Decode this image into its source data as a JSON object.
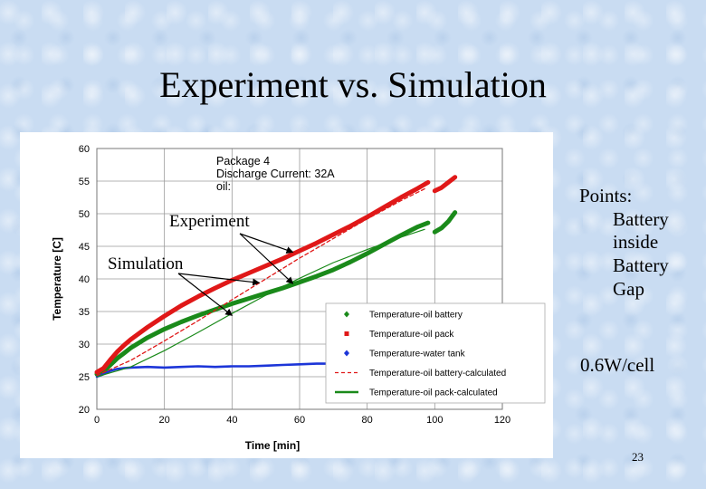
{
  "slide": {
    "title": "Experiment vs. Simulation",
    "points_heading": "Points:",
    "points_items": [
      "Battery",
      "inside",
      "Battery",
      "Gap"
    ],
    "power_note": "0.6W/cell",
    "slide_number": "23"
  },
  "chart_data": {
    "type": "line",
    "title": "",
    "xlabel": "Time [min]",
    "ylabel": "Temperature [C]",
    "xlim": [
      0,
      120
    ],
    "ylim": [
      20,
      60
    ],
    "xticks": [
      0,
      20,
      40,
      60,
      80,
      100,
      120
    ],
    "yticks": [
      20,
      25,
      30,
      35,
      40,
      45,
      50,
      55,
      60
    ],
    "grid": true,
    "legend_position": "bottom-right",
    "annotation_lines": [
      "Package 4",
      "Discharge Current: 32A",
      "oil:"
    ],
    "callouts": [
      "Experiment",
      "Simulation"
    ],
    "series": [
      {
        "name": "Temperature-oil battery",
        "style": "diamond-markers",
        "color": "#1a8a1a",
        "segments": [
          [
            [
              0,
              25.4
            ],
            [
              2,
              25.8
            ],
            [
              4,
              26.8
            ],
            [
              6,
              27.8
            ],
            [
              8,
              28.6
            ],
            [
              10,
              29.4
            ],
            [
              15,
              31.0
            ],
            [
              20,
              32.3
            ],
            [
              25,
              33.4
            ],
            [
              30,
              34.4
            ],
            [
              35,
              35.3
            ],
            [
              40,
              36.2
            ],
            [
              45,
              37.0
            ],
            [
              50,
              37.8
            ],
            [
              55,
              38.6
            ],
            [
              60,
              39.5
            ],
            [
              65,
              40.4
            ],
            [
              70,
              41.4
            ],
            [
              75,
              42.6
            ],
            [
              80,
              43.9
            ],
            [
              85,
              45.3
            ],
            [
              90,
              46.7
            ],
            [
              95,
              48.0
            ],
            [
              98,
              48.6
            ]
          ],
          [
            [
              100,
              47.2
            ],
            [
              102,
              47.8
            ],
            [
              104,
              48.8
            ],
            [
              106,
              50.2
            ]
          ]
        ]
      },
      {
        "name": "Temperature-oil pack",
        "style": "square-markers",
        "color": "#e01818",
        "segments": [
          [
            [
              0,
              25.7
            ],
            [
              2,
              26.3
            ],
            [
              4,
              27.6
            ],
            [
              6,
              28.8
            ],
            [
              8,
              29.8
            ],
            [
              10,
              30.7
            ],
            [
              15,
              32.6
            ],
            [
              20,
              34.3
            ],
            [
              25,
              35.9
            ],
            [
              30,
              37.3
            ],
            [
              35,
              38.6
            ],
            [
              40,
              39.8
            ],
            [
              45,
              40.9
            ],
            [
              50,
              42.0
            ],
            [
              55,
              43.1
            ],
            [
              60,
              44.3
            ],
            [
              65,
              45.5
            ],
            [
              70,
              46.8
            ],
            [
              75,
              48.1
            ],
            [
              80,
              49.5
            ],
            [
              85,
              51.0
            ],
            [
              90,
              52.5
            ],
            [
              95,
              53.9
            ],
            [
              98,
              54.8
            ]
          ],
          [
            [
              100,
              53.5
            ],
            [
              102,
              54.0
            ],
            [
              104,
              54.8
            ],
            [
              106,
              55.6
            ]
          ]
        ]
      },
      {
        "name": "Temperature-water tank",
        "style": "diamond-markers",
        "color": "#1c35d8",
        "segments": [
          [
            [
              0,
              25.0
            ],
            [
              2,
              25.4
            ],
            [
              4,
              25.9
            ],
            [
              6,
              26.2
            ],
            [
              8,
              26.3
            ],
            [
              10,
              26.4
            ],
            [
              15,
              26.5
            ],
            [
              20,
              26.4
            ],
            [
              25,
              26.5
            ],
            [
              30,
              26.6
            ],
            [
              35,
              26.5
            ],
            [
              40,
              26.6
            ],
            [
              45,
              26.6
            ],
            [
              50,
              26.7
            ],
            [
              55,
              26.8
            ],
            [
              60,
              26.9
            ],
            [
              65,
              27.0
            ],
            [
              68,
              27.0
            ]
          ]
        ]
      },
      {
        "name": "Temperature-oil battery-calculated",
        "style": "dashed",
        "color": "#e01818",
        "segments": [
          [
            [
              0,
              25.2
            ],
            [
              10,
              27.5
            ],
            [
              20,
              30.5
            ],
            [
              30,
              33.6
            ],
            [
              40,
              36.8
            ],
            [
              50,
              40.0
            ],
            [
              60,
              43.2
            ],
            [
              70,
              46.2
            ],
            [
              80,
              49.2
            ],
            [
              90,
              52.0
            ],
            [
              97,
              53.8
            ]
          ]
        ]
      },
      {
        "name": "Temperature-oil pack-calculated",
        "style": "solid-thin",
        "color": "#1a8a1a",
        "segments": [
          [
            [
              0,
              25.0
            ],
            [
              10,
              26.5
            ],
            [
              20,
              29.0
            ],
            [
              30,
              31.8
            ],
            [
              40,
              34.7
            ],
            [
              50,
              37.5
            ],
            [
              60,
              40.1
            ],
            [
              70,
              42.5
            ],
            [
              80,
              44.5
            ],
            [
              90,
              46.4
            ],
            [
              97,
              47.6
            ]
          ]
        ]
      }
    ]
  }
}
